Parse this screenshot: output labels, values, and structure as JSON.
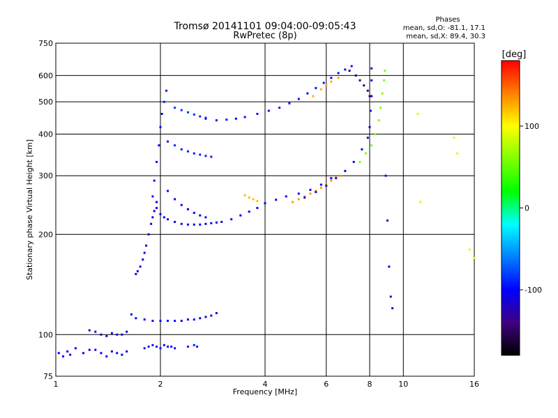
{
  "chart_data": {
    "type": "scatter",
    "title": "Tromsø 20141101 09:04:00-09:05:43",
    "subtitle": "RwPretec (8p)",
    "xlabel": "Frequency [MHz]",
    "ylabel": "Stationary phase Virtual Height [km]",
    "x_scale": "log",
    "y_scale": "log",
    "xlim": [
      1,
      16
    ],
    "ylim": [
      75,
      750
    ],
    "x_ticks": [
      1,
      2,
      4,
      6,
      8,
      10,
      16
    ],
    "y_ticks": [
      75,
      100,
      200,
      300,
      400,
      500,
      600,
      750
    ],
    "grid": true,
    "phase_stats": {
      "heading": "Phases",
      "line1": "mean, sd,O: -81.1, 17.1",
      "line2": "mean, sd,X:  89.4, 30.3"
    },
    "colorbar": {
      "label": "[deg]",
      "range": [
        -180,
        180
      ],
      "ticks": [
        100,
        0,
        -100
      ],
      "colors": [
        "#ff0000",
        "#ff8000",
        "#ffff00",
        "#80ff00",
        "#00ff00",
        "#00ffff",
        "#0080ff",
        "#0000ff",
        "#400080",
        "#000000"
      ]
    },
    "series": [
      {
        "f": [
          1.02,
          1.05,
          1.08,
          1.1,
          1.14,
          1.2,
          1.25
        ],
        "h": [
          88,
          86,
          89,
          87,
          91,
          88,
          90
        ],
        "phase": -100
      },
      {
        "f": [
          1.3,
          1.35,
          1.4,
          1.45,
          1.5,
          1.55,
          1.6
        ],
        "h": [
          90,
          88,
          86,
          89,
          88,
          87,
          89
        ],
        "phase": -105
      },
      {
        "f": [
          1.25,
          1.3,
          1.35,
          1.4,
          1.45,
          1.5,
          1.55,
          1.6
        ],
        "h": [
          103,
          102,
          100,
          99,
          101,
          100,
          100,
          102
        ],
        "phase": -112
      },
      {
        "f": [
          1.8,
          1.85,
          1.9,
          1.95,
          2.0,
          2.05,
          2.1,
          2.15,
          2.2
        ],
        "h": [
          91,
          92,
          93,
          92,
          91,
          93,
          92,
          92,
          91
        ],
        "phase": -95
      },
      {
        "f": [
          2.4,
          2.5,
          2.55
        ],
        "h": [
          92,
          93,
          92
        ],
        "phase": -90
      },
      {
        "f": [
          1.65,
          1.7,
          1.8,
          1.9,
          2.0,
          2.1,
          2.2,
          2.3,
          2.4,
          2.5,
          2.6,
          2.7,
          2.8,
          2.9
        ],
        "h": [
          115,
          112,
          111,
          110,
          110,
          110,
          110,
          110,
          111,
          111,
          112,
          113,
          114,
          116
        ],
        "phase": -102
      },
      {
        "f": [
          1.7,
          1.72,
          1.75,
          1.78,
          1.8,
          1.82,
          1.85,
          1.88,
          1.9,
          1.92,
          1.95
        ],
        "h": [
          152,
          155,
          160,
          168,
          176,
          185,
          200,
          215,
          225,
          235,
          250
        ],
        "phase": -110
      },
      {
        "f": [
          1.9,
          1.92,
          1.95,
          1.98,
          2.0,
          2.02,
          2.05,
          2.08,
          2.1
        ],
        "h": [
          260,
          290,
          330,
          370,
          420,
          460,
          500,
          540,
          380
        ],
        "phase": -95
      },
      {
        "f": [
          1.95,
          2.0,
          2.05,
          2.1,
          2.2,
          2.3,
          2.4,
          2.5,
          2.6,
          2.7,
          2.8,
          2.9,
          3.0,
          3.2,
          3.4,
          3.6,
          3.8,
          4.0,
          4.3,
          4.6,
          5.0,
          5.4,
          5.8,
          6.2
        ],
        "h": [
          240,
          230,
          225,
          222,
          218,
          215,
          214,
          214,
          214,
          215,
          216,
          217,
          218,
          222,
          228,
          234,
          240,
          248,
          254,
          260,
          265,
          272,
          282,
          295
        ],
        "phase": -105
      },
      {
        "f": [
          2.1,
          2.2,
          2.3,
          2.4,
          2.5,
          2.6,
          2.7
        ],
        "h": [
          270,
          255,
          245,
          238,
          232,
          228,
          225
        ],
        "phase": -100
      },
      {
        "f": [
          2.2,
          2.3,
          2.4,
          2.5,
          2.6,
          2.7,
          2.8
        ],
        "h": [
          370,
          360,
          355,
          350,
          347,
          344,
          342
        ],
        "phase": -90
      },
      {
        "f": [
          2.2,
          2.3,
          2.4,
          2.5,
          2.6,
          2.7
        ],
        "h": [
          480,
          472,
          465,
          458,
          452,
          448
        ],
        "phase": -85
      },
      {
        "f": [
          2.7,
          2.9,
          3.1,
          3.3,
          3.5,
          3.8,
          4.1,
          4.4,
          4.7,
          5.0,
          5.3,
          5.6,
          5.9,
          6.2,
          6.5,
          6.8,
          7.1
        ],
        "h": [
          445,
          440,
          442,
          445,
          450,
          460,
          470,
          480,
          495,
          510,
          530,
          550,
          570,
          590,
          610,
          625,
          640
        ],
        "phase": -95
      },
      {
        "f": [
          3.5,
          3.6,
          3.7,
          3.8
        ],
        "h": [
          262,
          258,
          255,
          252
        ],
        "phase": 120
      },
      {
        "f": [
          4.8,
          5.0,
          5.2,
          5.4,
          5.6,
          5.8,
          6.0,
          6.2,
          6.4,
          6.6
        ],
        "h": [
          250,
          255,
          260,
          265,
          270,
          276,
          283,
          290,
          296,
          300
        ],
        "phase": 130
      },
      {
        "f": [
          5.2,
          5.6,
          6.0,
          6.4,
          6.8,
          7.2,
          7.6,
          7.9,
          8.0,
          8.05,
          8.1,
          8.1,
          8.1
        ],
        "h": [
          258,
          268,
          280,
          295,
          310,
          330,
          360,
          390,
          420,
          470,
          520,
          580,
          630
        ],
        "phase": -115
      },
      {
        "f": [
          5.5,
          5.8,
          6.0,
          6.2,
          6.5
        ],
        "h": [
          520,
          545,
          560,
          575,
          590
        ],
        "phase": 125
      },
      {
        "f": [
          7.0,
          7.3,
          7.5,
          7.7,
          7.9,
          8.0
        ],
        "h": [
          620,
          600,
          580,
          560,
          540,
          520
        ],
        "phase": -150
      },
      {
        "f": [
          7.5,
          7.8,
          8.1,
          8.3,
          8.5,
          8.6,
          8.7,
          8.8,
          8.85
        ],
        "h": [
          330,
          350,
          370,
          400,
          440,
          480,
          530,
          580,
          620
        ],
        "phase": 60
      },
      {
        "f": [
          8.9,
          9.0,
          9.1,
          9.2,
          9.3
        ],
        "h": [
          300,
          220,
          160,
          130,
          120
        ],
        "phase": -110
      },
      {
        "f": [
          11.0,
          11.2,
          14.0,
          14.3,
          15.5,
          16.0
        ],
        "h": [
          460,
          250,
          390,
          350,
          180,
          170
        ],
        "phase": 90
      }
    ]
  }
}
